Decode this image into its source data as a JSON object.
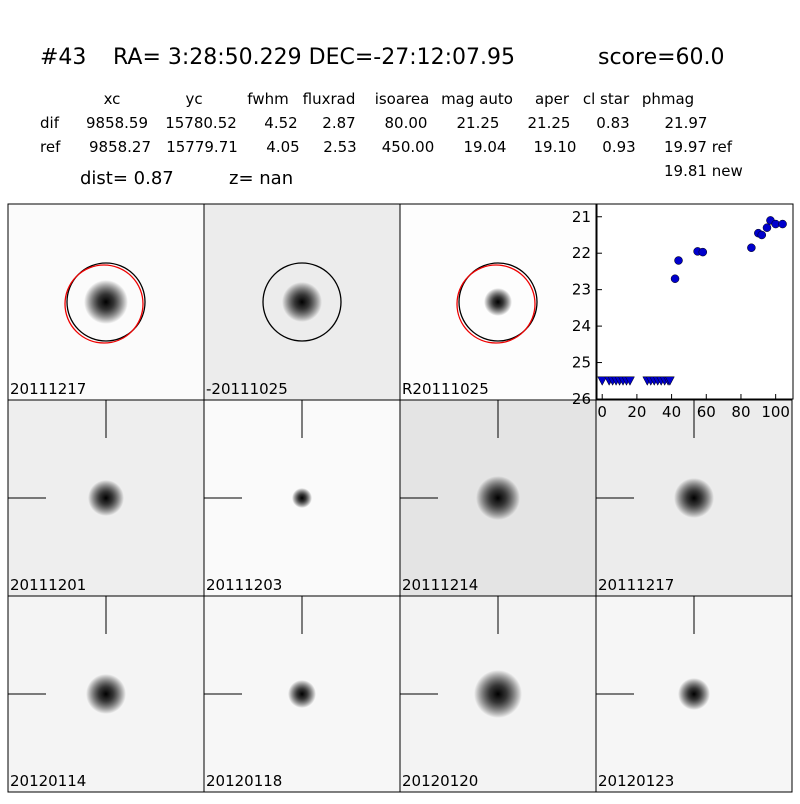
{
  "header": {
    "id": "#43",
    "coords": "RA= 3:28:50.229 DEC=-27:12:07.95",
    "score": "score=60.0",
    "table": {
      "columns": [
        "xc",
        "yc",
        "fwhm",
        "fluxrad",
        "isoarea",
        "mag auto",
        "aper",
        "cl star",
        "phmag"
      ],
      "rows": [
        [
          "dif",
          "9858.59",
          "15780.52",
          "4.52",
          "2.87",
          "80.00",
          "21.25",
          "21.25",
          "0.83",
          "21.97"
        ],
        [
          "ref",
          "9858.27",
          "15779.71",
          "4.05",
          "2.53",
          "450.00",
          "19.04",
          "19.10",
          "0.93",
          "19.97 ref"
        ]
      ],
      "extra": "19.81 new"
    },
    "dist": "dist=  0.87",
    "z": "z=   nan"
  },
  "panels": [
    {
      "label": "20111217"
    },
    {
      "label": "-20111025"
    },
    {
      "label": "R20111025"
    },
    {
      "label": "20111201"
    },
    {
      "label": "20111203"
    },
    {
      "label": "20111214"
    },
    {
      "label": "20111217",
      "label_color": "#ff0000"
    },
    {
      "label": "20120114"
    },
    {
      "label": "20120118"
    },
    {
      "label": "20120120"
    },
    {
      "label": "20120123"
    }
  ],
  "chart_data": {
    "type": "scatter",
    "xlim": [
      -3,
      110
    ],
    "ylim": [
      26,
      20.65
    ],
    "xticks": [
      0,
      20,
      40,
      60,
      80,
      100
    ],
    "yticks": [
      21,
      22,
      23,
      24,
      25,
      26
    ],
    "series": [
      {
        "color": "#0000cc",
        "marker": "triangle",
        "x": [
          0,
          4,
          6,
          8,
          10,
          12,
          14,
          16,
          26,
          28,
          30,
          32,
          34,
          36,
          38,
          39
        ],
        "values": [
          25.5,
          25.5,
          25.5,
          25.5,
          25.5,
          25.5,
          25.5,
          25.5,
          25.5,
          25.5,
          25.5,
          25.5,
          25.5,
          25.5,
          25.5,
          25.5
        ]
      },
      {
        "color": "#0000cc",
        "marker": "circle",
        "x": [
          42,
          44,
          55,
          58,
          86,
          90,
          92,
          95,
          97,
          100,
          104
        ],
        "values": [
          22.7,
          22.2,
          21.95,
          21.97,
          21.85,
          21.45,
          21.5,
          21.3,
          21.1,
          21.2,
          21.2
        ]
      }
    ]
  }
}
